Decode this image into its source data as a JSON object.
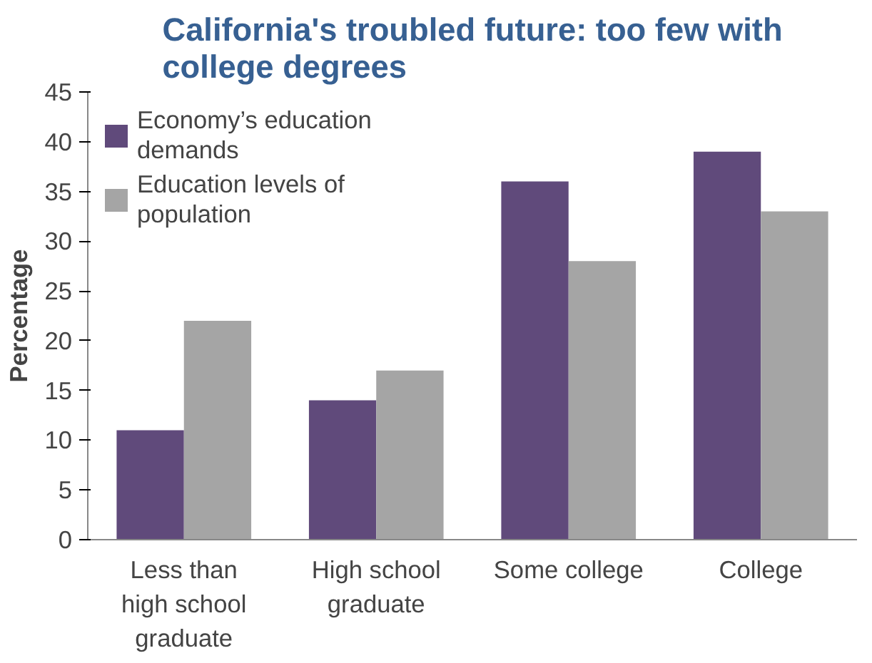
{
  "chart_data": {
    "type": "bar",
    "title": "California's troubled future: too few with college degrees",
    "ylabel": "Percentage",
    "categories": [
      "Less than high school graduate",
      "High school graduate",
      "Some college",
      "College"
    ],
    "series": [
      {
        "name": "Economy’s education demands",
        "color": "#604a7b",
        "values": [
          11,
          14,
          36,
          39
        ]
      },
      {
        "name": "Education levels of population",
        "color": "#a5a5a5",
        "values": [
          22,
          17,
          28,
          33
        ]
      }
    ],
    "ylim": [
      0,
      45
    ],
    "yticks": [
      0,
      5,
      10,
      15,
      20,
      25,
      30,
      35,
      40,
      45
    ],
    "grid": false,
    "legend": "top left"
  }
}
